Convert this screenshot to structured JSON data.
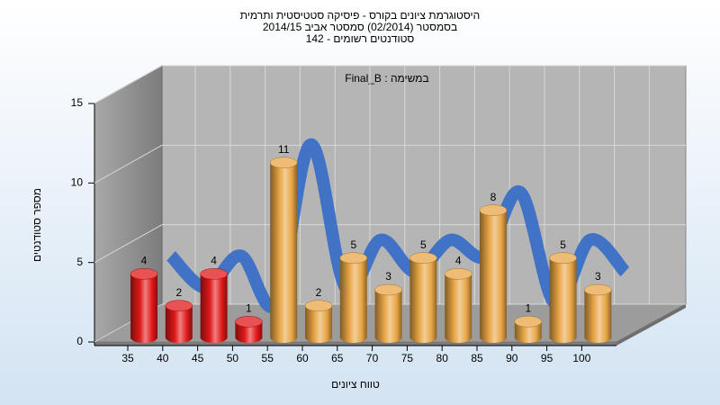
{
  "chart_data": {
    "type": "bar3d",
    "title_lines": [
      "היסטוגרמת ציונים בקורס - פיסיקה סטטיסטית ותרמית",
      "בסמסטר  (02/2014)  סמסטר אביב 2014/15",
      "סטודנטים רשומים - 142"
    ],
    "annotation": "במשימה : Final_B",
    "x_label": "טווח ציונים",
    "y_label": "מספר סטודנטים",
    "categories": [
      "35",
      "40",
      "45",
      "50",
      "55",
      "60",
      "65",
      "70",
      "75",
      "80",
      "85",
      "90",
      "95",
      "100"
    ],
    "values": [
      4,
      2,
      4,
      1,
      11,
      2,
      5,
      3,
      5,
      4,
      8,
      1,
      5,
      3
    ],
    "colors": [
      "#e01818",
      "#e01818",
      "#e01818",
      "#e01818",
      "#e8a545",
      "#e8a545",
      "#e8a545",
      "#e8a545",
      "#e8a545",
      "#e8a545",
      "#e8a545",
      "#e8a545",
      "#e8a545",
      "#e8a545"
    ],
    "line_color": "#3a6fc6",
    "ylim": [
      0,
      15
    ],
    "yticks": [
      0,
      5,
      10,
      15
    ],
    "grid": true
  }
}
